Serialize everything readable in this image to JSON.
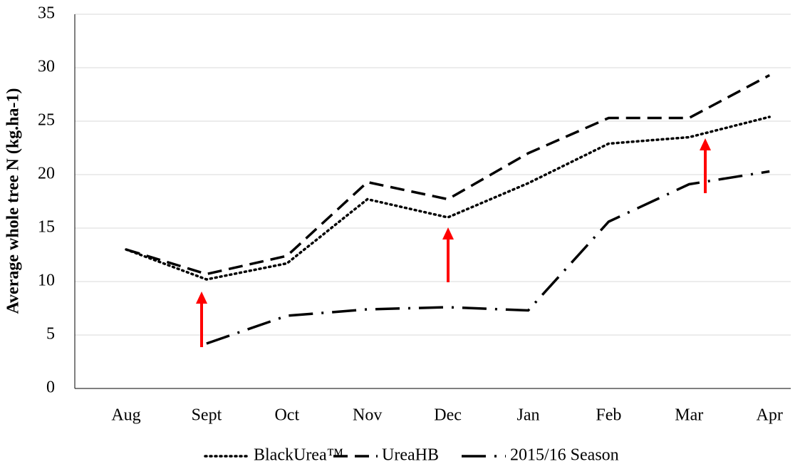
{
  "chart_data": {
    "type": "line",
    "y_label": "Average whole tree N (kg.ha-1)",
    "categories": [
      "Aug",
      "Sept",
      "Oct",
      "Nov",
      "Dec",
      "Jan",
      "Feb",
      "Mar",
      "Apr"
    ],
    "series": [
      {
        "name": "BlackUrea™",
        "color": "#000000",
        "dash": "dotted",
        "values": [
          13,
          10.2,
          11.7,
          17.7,
          16,
          19.2,
          22.9,
          23.5,
          25.4
        ]
      },
      {
        "name": "UreaHB",
        "color": "#000000",
        "dash": "dashed",
        "values": [
          13,
          10.7,
          12.4,
          19.3,
          17.7,
          22,
          25.3,
          25.3,
          29.3
        ]
      },
      {
        "name": "2015/16 Season",
        "color": "#000000",
        "dash": "dashdot",
        "values": [
          null,
          4.2,
          6.8,
          7.4,
          7.6,
          7.3,
          15.6,
          19.1,
          20.3
        ]
      }
    ],
    "ylim": [
      0,
      35
    ],
    "yticks": [
      0,
      5,
      10,
      15,
      20,
      25,
      30,
      35
    ],
    "grid": true,
    "legend": "bottom"
  }
}
